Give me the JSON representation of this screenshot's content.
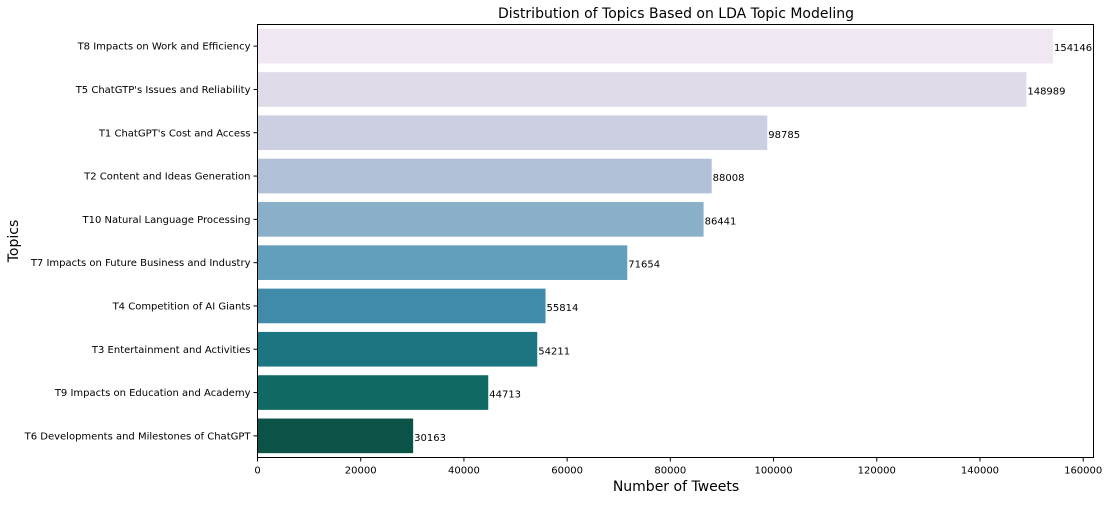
{
  "chart_data": {
    "type": "bar",
    "orientation": "horizontal",
    "title": "Distribution of Topics Based on LDA Topic Modeling",
    "xlabel": "Number of Tweets",
    "ylabel": "Topics",
    "xlim": [
      0,
      162000
    ],
    "x_ticks": [
      0,
      20000,
      40000,
      60000,
      80000,
      100000,
      120000,
      140000,
      160000
    ],
    "grid": false,
    "legend": "none",
    "categories": [
      "T8 Impacts on Work and Efficiency",
      "T5 ChatGTP's Issues and Reliability",
      "T1 ChatGPT's Cost and Access",
      "T2 Content and Ideas Generation",
      "T10 Natural Language Processing",
      "T7 Impacts on Future Business and Industry",
      "T4 Competition of AI Giants",
      "T3 Entertainment and Activities",
      "T9 Impacts on Education and Academy",
      "T6 Developments and Milestones of ChatGPT"
    ],
    "values": [
      154146,
      148989,
      98785,
      88008,
      86441,
      71654,
      55814,
      54211,
      44713,
      30163
    ],
    "colors": [
      "#efe7f1",
      "#dfdbe9",
      "#cbcfe1",
      "#afc0d7",
      "#8aafc9",
      "#629fbd",
      "#418baa",
      "#1c7581",
      "#106a63",
      "#0b5347"
    ]
  }
}
